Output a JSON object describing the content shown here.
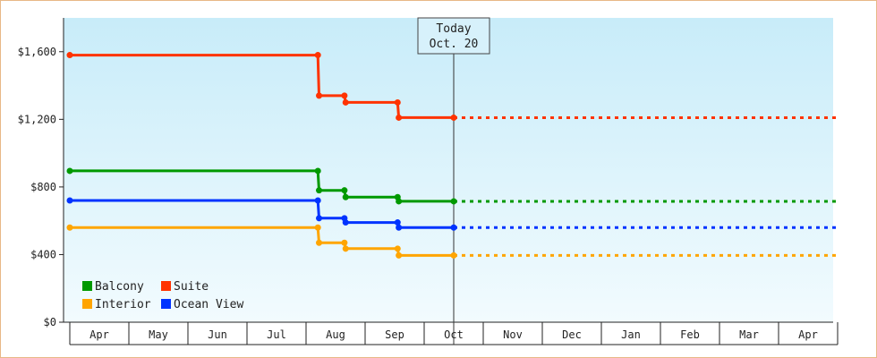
{
  "chart_data": {
    "type": "line",
    "subtype": "step",
    "y_unit_prefix": "$",
    "ylim": [
      0,
      1800
    ],
    "y_ticks": [
      0,
      400,
      800,
      1200,
      1600
    ],
    "y_tick_labels": [
      "$0",
      "$400",
      "$800",
      "$1,200",
      "$1,600"
    ],
    "x_months": [
      "Apr",
      "May",
      "Jun",
      "Jul",
      "Aug",
      "Sep",
      "Oct",
      "Nov",
      "Dec",
      "Jan",
      "Feb",
      "Mar",
      "Apr"
    ],
    "xlim": [
      0,
      13
    ],
    "grid": false,
    "today_marker": {
      "x": 6.5,
      "label_line1": "Today",
      "label_line2": "Oct. 20"
    },
    "projection_to": 13,
    "legend_placement": "bottom-left",
    "series": [
      {
        "name": "Suite",
        "color": "#ff3300",
        "points": [
          [
            0,
            1580
          ],
          [
            4.2,
            1580
          ],
          [
            4.22,
            1340
          ],
          [
            4.65,
            1340
          ],
          [
            4.67,
            1300
          ],
          [
            5.55,
            1300
          ],
          [
            5.57,
            1210
          ],
          [
            6.5,
            1210
          ]
        ]
      },
      {
        "name": "Balcony",
        "color": "#009900",
        "points": [
          [
            0,
            895
          ],
          [
            4.2,
            895
          ],
          [
            4.22,
            780
          ],
          [
            4.65,
            780
          ],
          [
            4.67,
            740
          ],
          [
            5.55,
            740
          ],
          [
            5.57,
            715
          ],
          [
            6.5,
            715
          ]
        ]
      },
      {
        "name": "Ocean View",
        "color": "#0033ff",
        "points": [
          [
            0,
            720
          ],
          [
            4.2,
            720
          ],
          [
            4.22,
            615
          ],
          [
            4.65,
            615
          ],
          [
            4.67,
            590
          ],
          [
            5.55,
            590
          ],
          [
            5.57,
            560
          ],
          [
            6.5,
            560
          ]
        ]
      },
      {
        "name": "Interior",
        "color": "#ffa500",
        "points": [
          [
            0,
            560
          ],
          [
            4.2,
            560
          ],
          [
            4.22,
            470
          ],
          [
            4.65,
            470
          ],
          [
            4.67,
            435
          ],
          [
            5.55,
            435
          ],
          [
            5.57,
            395
          ],
          [
            6.5,
            395
          ]
        ]
      }
    ],
    "legend": [
      {
        "name": "Balcony",
        "color": "#009900"
      },
      {
        "name": "Suite",
        "color": "#ff3300"
      },
      {
        "name": "Interior",
        "color": "#ffa500"
      },
      {
        "name": "Ocean View",
        "color": "#0033ff"
      }
    ]
  }
}
